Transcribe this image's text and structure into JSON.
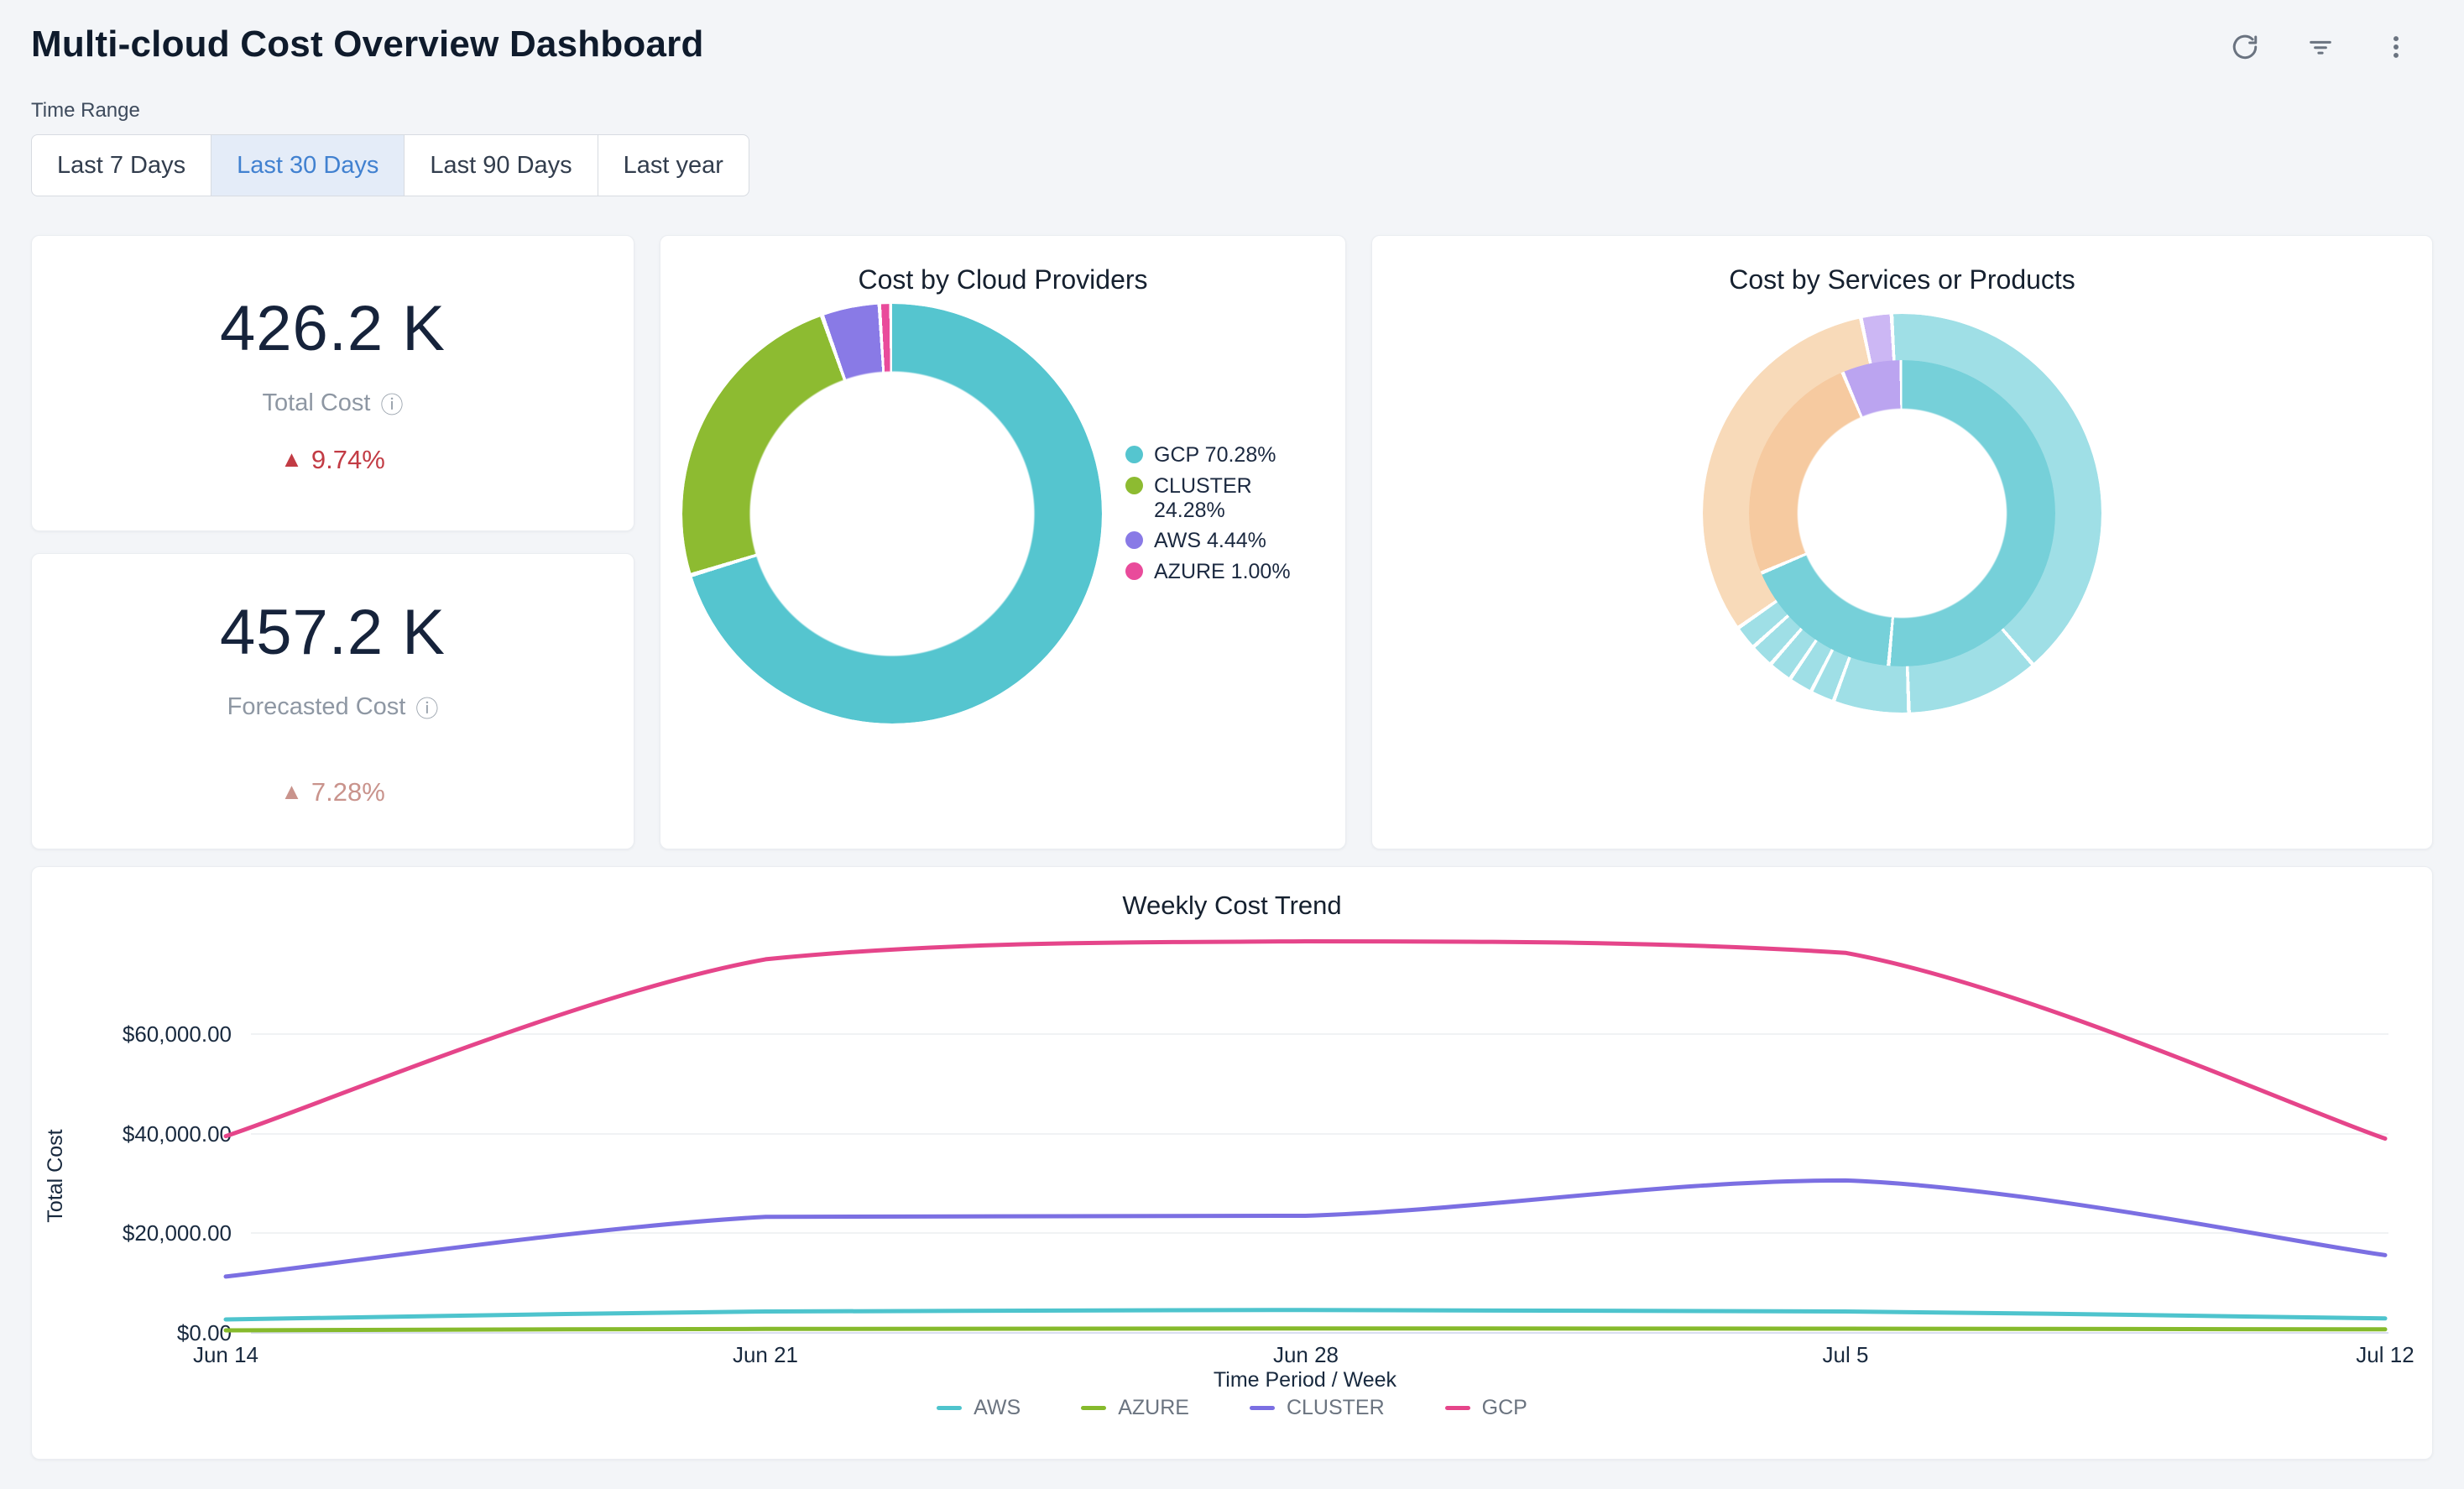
{
  "header": {
    "title": "Multi-cloud Cost Overview Dashboard"
  },
  "icons": {
    "info": "ⓘ",
    "delta_up": "▲"
  },
  "time_range": {
    "label": "Time Range",
    "options": [
      {
        "label": "Last 7 Days",
        "selected": false
      },
      {
        "label": "Last 30 Days",
        "selected": true
      },
      {
        "label": "Last 90 Days",
        "selected": false
      },
      {
        "label": "Last year",
        "selected": false
      }
    ],
    "selected_text_color": "#4181d0",
    "selected_bg_color": "#e4ecf8"
  },
  "kpis": [
    {
      "value": "426.2 K",
      "label": "Total Cost",
      "delta_arrow": "▲",
      "delta": "9.74%",
      "delta_color": "#c23b44"
    },
    {
      "value": "457.2 K",
      "label": "Forecasted Cost",
      "delta_arrow": "▲",
      "delta": "7.28%",
      "delta_color": "#c9938c"
    }
  ],
  "provider_chart": {
    "title": "Cost by Cloud Providers",
    "legend": [
      {
        "label": "GCP 70.28%",
        "color": "#55c5cf"
      },
      {
        "label": "CLUSTER 24.28%",
        "color": "#8dbb31"
      },
      {
        "label": "AWS 4.44%",
        "color": "#897ae6"
      },
      {
        "label": "AZURE 1.00%",
        "color": "#e94b9b"
      }
    ],
    "chart_data": {
      "type": "pie",
      "subtype": "donut",
      "title": "Cost by Cloud Providers",
      "categories": [
        "GCP",
        "CLUSTER",
        "AWS",
        "AZURE"
      ],
      "values": [
        70.28,
        24.28,
        4.44,
        1.0
      ],
      "unit": "%",
      "colors": [
        "#55c5cf",
        "#8dbb31",
        "#897ae6",
        "#e94b9b"
      ],
      "legend_position": "right",
      "start_angle_deg": 0,
      "clockwise": true
    }
  },
  "services_chart": {
    "title": "Cost by Services or Products",
    "chart_data": {
      "type": "pie",
      "subtype": "sunburst",
      "title": "Cost by Services or Products",
      "note": "Two-ring sunburst without text labels; shares estimated from segment angles",
      "rings": [
        {
          "name": "inner (providers)",
          "segments": [
            {
              "category": "GCP",
              "share_pct": 68.6,
              "color": "#76d0d9"
            },
            {
              "category": "CLUSTER",
              "share_pct": 25.0,
              "color": "#f6caa0"
            },
            {
              "category": "AWS",
              "share_pct": 6.4,
              "color": "#bba4f0"
            }
          ]
        },
        {
          "name": "outer (services)",
          "segments": [
            {
              "category": "GCP service 1",
              "share_pct": 39.2,
              "color": "#9fdfe6"
            },
            {
              "category": "GCP service 2",
              "share_pct": 10.8,
              "color": "#9fdfe6"
            },
            {
              "category": "GCP service 3",
              "share_pct": 6.1,
              "color": "#9fdfe6"
            },
            {
              "category": "GCP small services x5",
              "share_pct": 9.7,
              "color": "#9fdfe6"
            },
            {
              "category": "CLUSTER service",
              "share_pct": 31.2,
              "color": "#f8dab9"
            },
            {
              "category": "AWS service",
              "share_pct": 2.3,
              "color": "#ccb7f4"
            }
          ]
        }
      ]
    }
  },
  "trend_chart": {
    "title": "Weekly Cost Trend",
    "ylabel": "Total Cost",
    "xlabel": "Time Period / Week",
    "yticks": [
      "$60,000.00",
      "$40,000.00",
      "$20,000.00",
      "$0.00"
    ],
    "chart_data": {
      "type": "line",
      "title": "Weekly Cost Trend",
      "x": [
        "Jun 14",
        "Jun 21",
        "Jun 28",
        "Jul 5",
        "Jul 12"
      ],
      "series": [
        {
          "name": "AWS",
          "color": "#4ec4cd",
          "values": [
            2700,
            4300,
            4600,
            4300,
            2900
          ]
        },
        {
          "name": "AZURE",
          "color": "#86ba2c",
          "values": [
            500,
            800,
            900,
            850,
            700
          ]
        },
        {
          "name": "CLUSTER",
          "color": "#7b6fe2",
          "values": [
            11300,
            23300,
            23500,
            30600,
            15600
          ]
        },
        {
          "name": "GCP",
          "color": "#e5458a",
          "values": [
            39500,
            75000,
            78600,
            76300,
            39000
          ]
        }
      ],
      "ylim": [
        0,
        80000
      ],
      "ytick_values": [
        0,
        20000,
        40000,
        60000
      ],
      "grid": true,
      "smooth": true,
      "legend_position": "bottom",
      "value_format": "USD"
    }
  }
}
